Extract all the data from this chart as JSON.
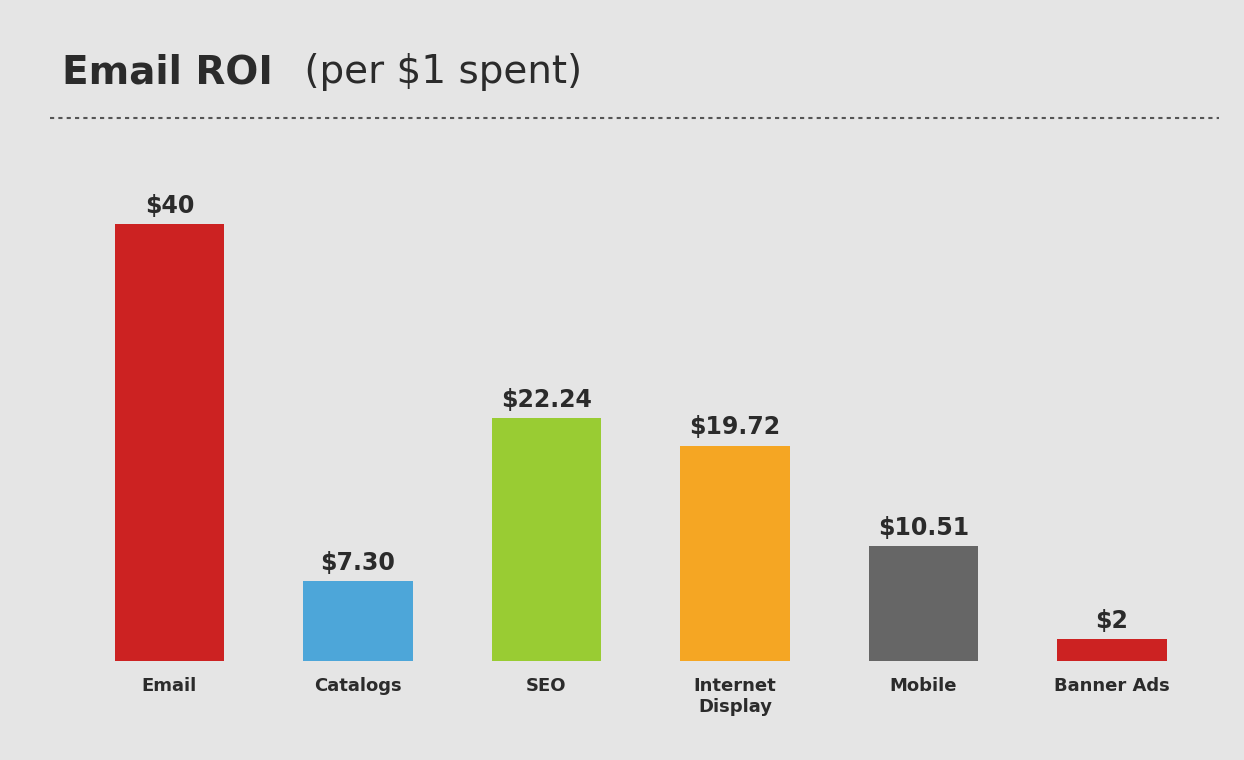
{
  "categories": [
    "Email",
    "Catalogs",
    "SEO",
    "Internet\nDisplay",
    "Mobile",
    "Banner Ads"
  ],
  "values": [
    40,
    7.3,
    22.24,
    19.72,
    10.51,
    2
  ],
  "labels": [
    "$40",
    "$7.30",
    "$22.24",
    "$19.72",
    "$10.51",
    "$2"
  ],
  "bar_colors": [
    "#cc2222",
    "#4da6d9",
    "#99cc33",
    "#f5a623",
    "#666666",
    "#cc2222"
  ],
  "title_bold": "Email ROI",
  "title_normal": " (per $1 spent)",
  "background_color": "#e5e5e5",
  "title_color": "#2b2b2b",
  "label_color": "#2b2b2b",
  "dotted_line_color": "#555555",
  "title_fontsize": 28,
  "label_fontsize": 17,
  "xtick_fontsize": 13,
  "ylim": [
    0,
    48
  ],
  "bar_width": 0.58
}
